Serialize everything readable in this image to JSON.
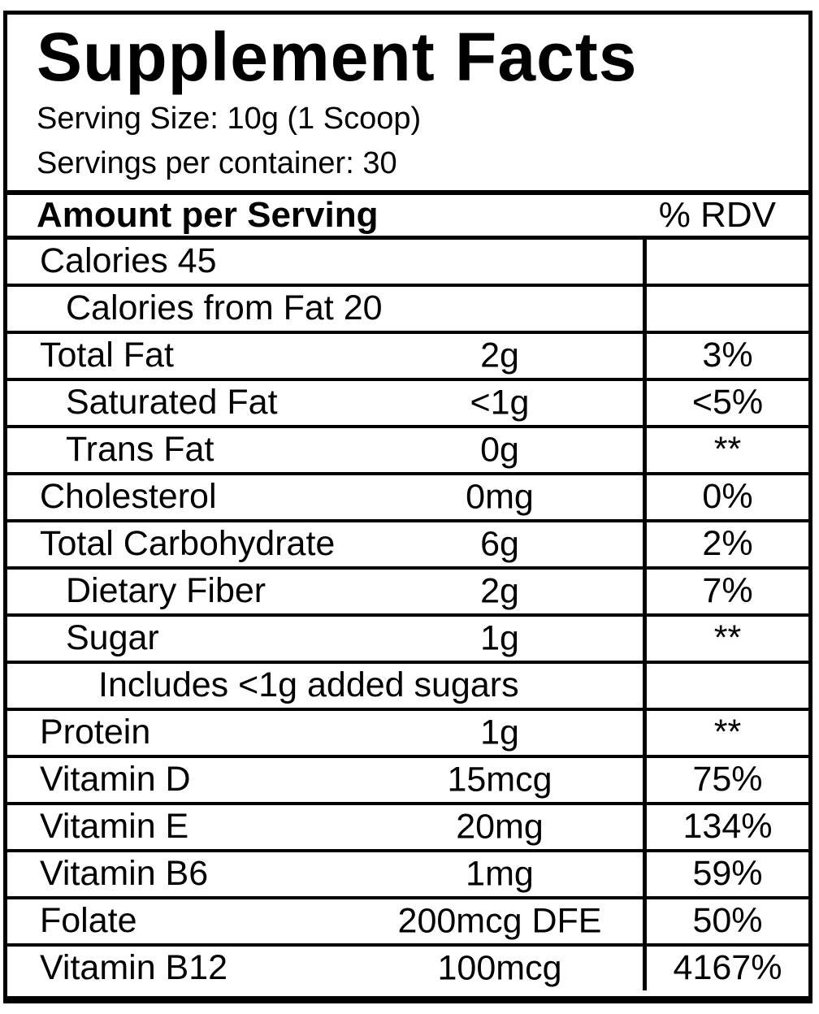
{
  "label": {
    "title": "Supplement Facts",
    "serving_size": "Serving Size: 10g (1 Scoop)",
    "servings_per_container": "Servings per container: 30",
    "header": {
      "amount_col": "Amount per Serving",
      "rdv_col": "% RDV"
    },
    "rows": [
      {
        "name": "Calories 45",
        "amount": "",
        "rdv": "",
        "indent": 0
      },
      {
        "name": "Calories from Fat 20",
        "amount": "",
        "rdv": "",
        "indent": 1
      },
      {
        "name": "Total Fat",
        "amount": "2g",
        "rdv": "3%",
        "indent": 0
      },
      {
        "name": "Saturated Fat",
        "amount": "<1g",
        "rdv": "<5%",
        "indent": 1
      },
      {
        "name": "Trans Fat",
        "amount": "0g",
        "rdv": "**",
        "indent": 1
      },
      {
        "name": "Cholesterol",
        "amount": "0mg",
        "rdv": "0%",
        "indent": 0
      },
      {
        "name": "Total Carbohydrate",
        "amount": "6g",
        "rdv": "2%",
        "indent": 0
      },
      {
        "name": "Dietary Fiber",
        "amount": "2g",
        "rdv": "7%",
        "indent": 1
      },
      {
        "name": "Sugar",
        "amount": "1g",
        "rdv": "**",
        "indent": 1
      },
      {
        "name": "Includes <1g added sugars",
        "amount": "",
        "rdv": "",
        "indent": 2
      },
      {
        "name": "Protein",
        "amount": "1g",
        "rdv": "**",
        "indent": 0
      },
      {
        "name": "Vitamin D",
        "amount": "15mcg",
        "rdv": "75%",
        "indent": 0
      },
      {
        "name": "Vitamin E",
        "amount": "20mg",
        "rdv": "134%",
        "indent": 0
      },
      {
        "name": "Vitamin B6",
        "amount": "1mg",
        "rdv": "59%",
        "indent": 0
      },
      {
        "name": "Folate",
        "amount": "200mcg DFE",
        "rdv": "50%",
        "indent": 0
      },
      {
        "name": "Vitamin B12",
        "amount": "100mcg",
        "rdv": "4167%",
        "indent": 0
      }
    ],
    "colors": {
      "ink": "#000000",
      "background": "#ffffff"
    }
  }
}
